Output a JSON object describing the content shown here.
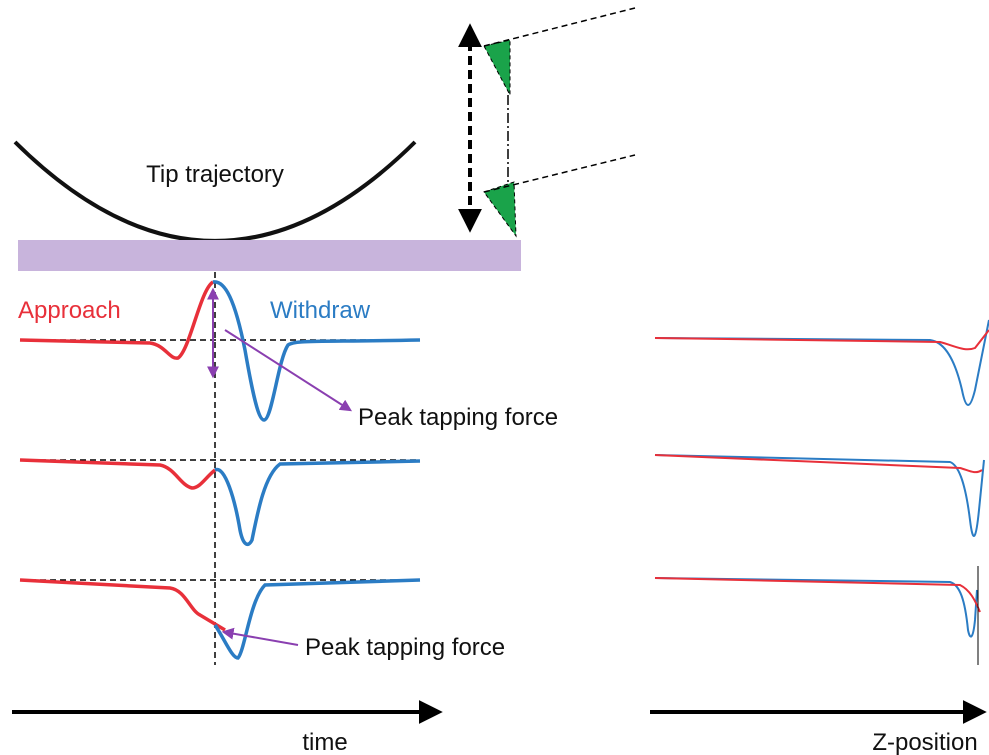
{
  "labels": {
    "tip_trajectory": "Tip trajectory",
    "approach": "Approach",
    "withdraw": "Withdraw",
    "peak_force_1": "Peak tapping force",
    "peak_force_2": "Peak tapping force",
    "time_axis": "time",
    "z_axis": "Z-position"
  }
}
